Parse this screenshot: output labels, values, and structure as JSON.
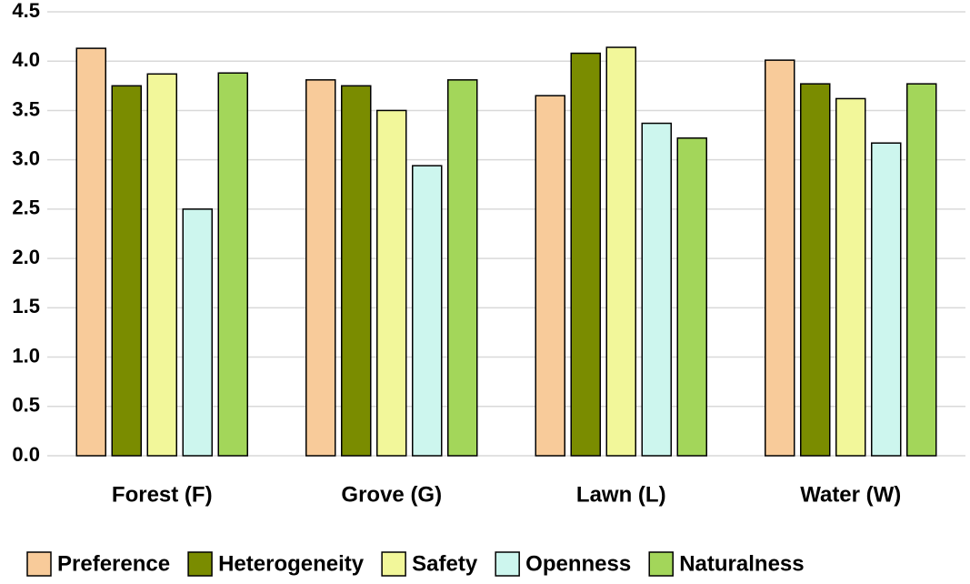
{
  "chart_data": {
    "type": "bar",
    "categories": [
      "Forest (F)",
      "Grove (G)",
      "Lawn (L)",
      "Water (W)"
    ],
    "series": [
      {
        "name": "Preference",
        "color": "#f8cb9a",
        "values": [
          4.13,
          3.81,
          3.65,
          4.01
        ]
      },
      {
        "name": "Heterogeneity",
        "color": "#7a8c00",
        "values": [
          3.75,
          3.75,
          4.08,
          3.77
        ]
      },
      {
        "name": "Safety",
        "color": "#f2f79a",
        "values": [
          3.87,
          3.5,
          4.14,
          3.62
        ]
      },
      {
        "name": "Openness",
        "color": "#cdf6ee",
        "values": [
          2.5,
          2.94,
          3.37,
          3.17
        ]
      },
      {
        "name": "Naturalness",
        "color": "#a3d65a",
        "values": [
          3.88,
          3.81,
          3.22,
          3.77
        ]
      }
    ],
    "ylim": [
      0,
      4.5
    ],
    "yticks": [
      {
        "value": 0,
        "label": "0.0"
      },
      {
        "value": 0.5,
        "label": "0.5"
      },
      {
        "value": 1,
        "label": "1.0"
      },
      {
        "value": 1.5,
        "label": "1.5"
      },
      {
        "value": 2,
        "label": "2.0"
      },
      {
        "value": 2.5,
        "label": "2.5"
      },
      {
        "value": 3,
        "label": "3.0"
      },
      {
        "value": 3.5,
        "label": "3.5"
      },
      {
        "value": 4,
        "label": "4.0"
      },
      {
        "value": 4.5,
        "label": "4.5"
      }
    ],
    "grid": true,
    "legend": "bottom"
  }
}
